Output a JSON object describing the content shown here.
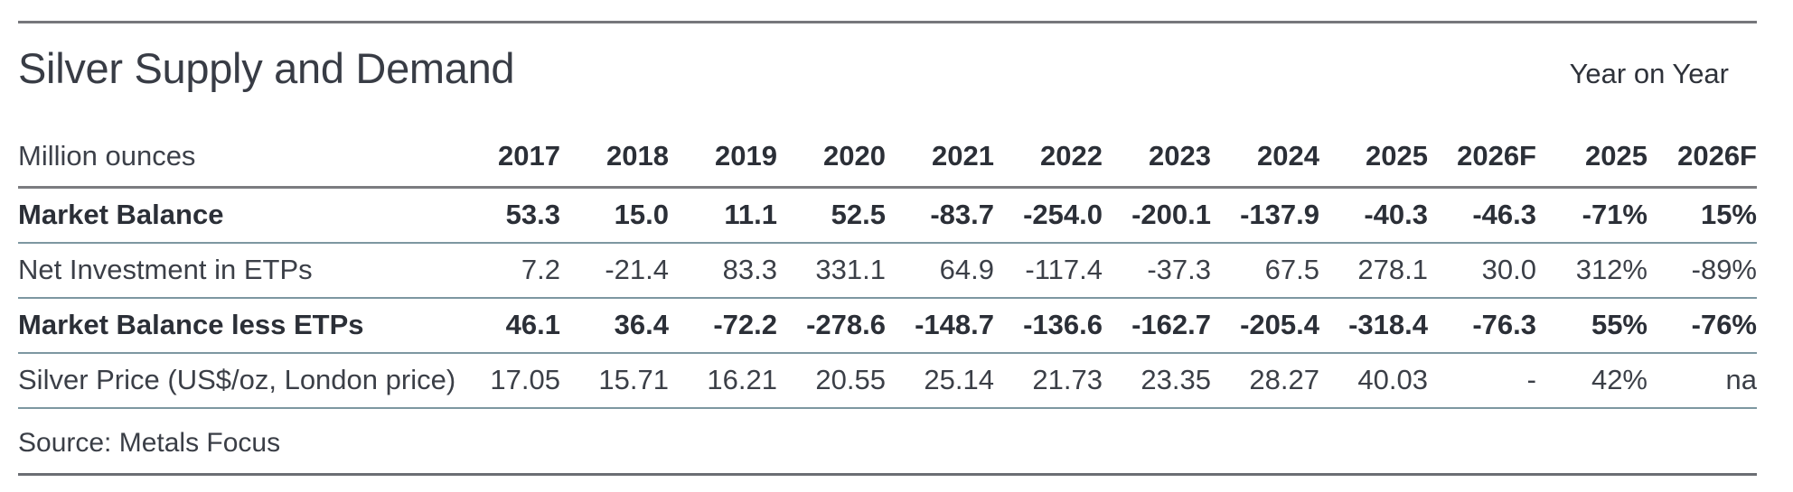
{
  "chart_data": {
    "type": "table",
    "title": "Silver Supply and Demand",
    "right_header": "Year on Year",
    "unit_label": "Million ounces",
    "year_columns": [
      "2017",
      "2018",
      "2019",
      "2020",
      "2021",
      "2022",
      "2023",
      "2024",
      "2025",
      "2026F"
    ],
    "yoy_columns": [
      "2025",
      "2026F"
    ],
    "rows": [
      {
        "label": "Market Balance",
        "bold": true,
        "values": [
          "53.3",
          "15.0",
          "11.1",
          "52.5",
          "-83.7",
          "-254.0",
          "-200.1",
          "-137.9",
          "-40.3",
          "-46.3"
        ],
        "yoy": [
          "-71%",
          "15%"
        ]
      },
      {
        "label": "Net Investment in ETPs",
        "bold": false,
        "values": [
          "7.2",
          "-21.4",
          "83.3",
          "331.1",
          "64.9",
          "-117.4",
          "-37.3",
          "67.5",
          "278.1",
          "30.0"
        ],
        "yoy": [
          "312%",
          "-89%"
        ]
      },
      {
        "label": "Market Balance less ETPs",
        "bold": true,
        "values": [
          "46.1",
          "36.4",
          "-72.2",
          "-278.6",
          "-148.7",
          "-136.6",
          "-162.7",
          "-205.4",
          "-318.4",
          "-76.3"
        ],
        "yoy": [
          "55%",
          "-76%"
        ]
      },
      {
        "label": "Silver Price (US$/oz, London price)",
        "bold": false,
        "values": [
          "17.05",
          "15.71",
          "16.21",
          "20.55",
          "25.14",
          "21.73",
          "23.35",
          "28.27",
          "40.03",
          "-"
        ],
        "yoy": [
          "42%",
          "na"
        ]
      }
    ],
    "source": "Source: Metals Focus"
  },
  "colors": {
    "rule_gray": "#76777b",
    "header_underline_gray": "#7b7c80",
    "row_divider_slate": "#7d97a1",
    "bottom_rule_gray": "#6b6e73",
    "text_regular": "#3b3f47",
    "text_bold": "#2b2f37"
  }
}
